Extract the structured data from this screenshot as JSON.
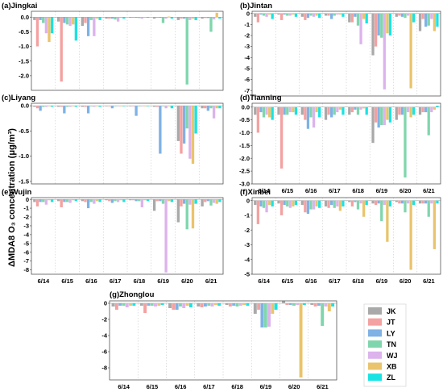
{
  "chart_data": {
    "type": "bar",
    "ylabel": "ΔMDA8 O₃ concentration (μg/m³)",
    "categories": [
      "6/14",
      "6/15",
      "6/16",
      "6/17",
      "6/18",
      "6/19",
      "6/20",
      "6/21"
    ],
    "legend": {
      "placement": "bottom-right",
      "entries": [
        {
          "key": "JK",
          "label": "JK",
          "color": "#a9a9a9"
        },
        {
          "key": "JT",
          "label": "JT",
          "color": "#f4a1a1"
        },
        {
          "key": "LY",
          "label": "LY",
          "color": "#7fb2e5"
        },
        {
          "key": "TN",
          "label": "TN",
          "color": "#7fd6ad"
        },
        {
          "key": "WJ",
          "label": "WJ",
          "color": "#dcb3ec"
        },
        {
          "key": "XB",
          "label": "XB",
          "color": "#eac46c"
        },
        {
          "key": "ZL",
          "label": "ZL",
          "color": "#19e3e3"
        }
      ]
    },
    "panels": [
      {
        "title": "(a)Jingkai",
        "ylim": [
          -2.5,
          0.2
        ],
        "yticks": [
          "0.0",
          "-0.5",
          "-1.0",
          "-1.5",
          "-2.0"
        ],
        "ytick_values": [
          0,
          -0.5,
          -1,
          -1.5,
          -2
        ],
        "show_xticks": false,
        "series": {
          "JK": [
            -0.1,
            -0.15,
            -0.3,
            -0.05,
            -0.02,
            -0.05,
            -0.1,
            -0.05
          ],
          "JT": [
            -1.0,
            -2.2,
            -0.2,
            -0.05,
            -0.02,
            -0.02,
            -0.05,
            -0.03
          ],
          "LY": [
            -0.1,
            -0.2,
            -0.65,
            -0.05,
            -0.02,
            -0.02,
            -0.05,
            -0.03
          ],
          "TN": [
            -0.2,
            -0.25,
            -0.1,
            -0.08,
            -0.03,
            -0.2,
            -2.3,
            -0.5
          ],
          "WJ": [
            -0.55,
            -0.3,
            -0.65,
            -0.15,
            -0.05,
            -0.05,
            -0.1,
            -0.08
          ],
          "XB": [
            -0.85,
            -0.25,
            -0.05,
            -0.02,
            -0.01,
            0.02,
            -0.05,
            0.15
          ],
          "ZL": [
            -0.55,
            -0.8,
            -0.1,
            -0.05,
            -0.02,
            -0.05,
            -0.1,
            -0.05
          ]
        }
      },
      {
        "title": "(b)Jintan",
        "ylim": [
          -7.5,
          0.2
        ],
        "yticks": [
          "0",
          "-1",
          "-2",
          "-3",
          "-4",
          "-5",
          "-6",
          "-7"
        ],
        "ytick_values": [
          0,
          -1,
          -2,
          -3,
          -4,
          -5,
          -6,
          -7
        ],
        "show_xticks": false,
        "series": {
          "JK": [
            -0.3,
            -0.1,
            -0.3,
            -0.2,
            -0.8,
            -3.8,
            -0.3,
            -1.6
          ],
          "JT": [
            -0.8,
            -0.6,
            -0.6,
            -0.2,
            -0.8,
            -3.0,
            -0.2,
            -0.5
          ],
          "LY": [
            -0.1,
            -0.1,
            -0.4,
            -0.5,
            -0.3,
            -2.0,
            -0.3,
            -1.2
          ],
          "TN": [
            -0.2,
            -0.2,
            -0.2,
            -0.2,
            -1.1,
            -2.2,
            -0.4,
            -1.1
          ],
          "WJ": [
            -0.3,
            -0.2,
            -0.3,
            -0.1,
            -2.8,
            -6.9,
            -0.2,
            -0.5
          ],
          "XB": [
            -0.1,
            -0.1,
            -0.2,
            -0.1,
            -0.5,
            -1.8,
            -6.8,
            -1.6
          ],
          "ZL": [
            -0.5,
            -0.3,
            -0.4,
            -0.3,
            -0.9,
            -2.0,
            -0.8,
            -1.2
          ]
        }
      },
      {
        "title": "(c)Liyang",
        "ylim": [
          -1.55,
          0.05
        ],
        "yticks": [
          "0.0",
          "-0.5",
          "-1.0",
          "-1.5"
        ],
        "ytick_values": [
          0,
          -0.5,
          -1,
          -1.5
        ],
        "show_xticks": false,
        "series": {
          "JK": [
            -0.02,
            -0.02,
            -0.02,
            -0.01,
            -0.01,
            -0.02,
            -0.7,
            -0.05
          ],
          "JT": [
            -0.05,
            -0.02,
            -0.02,
            -0.01,
            -0.01,
            -0.02,
            -0.95,
            -0.05
          ],
          "LY": [
            -0.1,
            -0.15,
            -0.15,
            -0.05,
            -0.2,
            -0.95,
            -0.75,
            -0.1
          ],
          "TN": [
            -0.02,
            -0.02,
            -0.01,
            -0.01,
            -0.01,
            -0.01,
            -0.45,
            -0.05
          ],
          "WJ": [
            -0.02,
            -0.02,
            -0.02,
            -0.01,
            -0.01,
            -0.05,
            -1.05,
            -0.25
          ],
          "XB": [
            -0.01,
            -0.01,
            -0.01,
            -0.01,
            -0.01,
            -0.01,
            -1.15,
            -0.05
          ],
          "ZL": [
            -0.02,
            -0.02,
            -0.02,
            -0.01,
            -0.01,
            -0.05,
            -0.55,
            -0.05
          ]
        }
      },
      {
        "title": "(d)Tianning",
        "ylim": [
          -3.0,
          0.15
        ],
        "yticks": [
          "0.0",
          "-0.5",
          "-1.0",
          "-1.5",
          "-2.0",
          "-2.5",
          "-3.0"
        ],
        "ytick_values": [
          0,
          -0.5,
          -1,
          -1.5,
          -2,
          -2.5,
          -3
        ],
        "show_xticks": true,
        "series": {
          "JK": [
            -0.3,
            -0.3,
            -0.3,
            -0.5,
            -0.3,
            -1.4,
            -0.5,
            -0.3
          ],
          "JT": [
            -1.0,
            -2.4,
            -0.5,
            -0.3,
            -0.2,
            -0.6,
            -0.3,
            -0.2
          ],
          "LY": [
            -0.2,
            -0.3,
            -0.85,
            -0.4,
            -0.1,
            -0.8,
            -0.3,
            -0.2
          ],
          "TN": [
            -0.4,
            -0.3,
            -0.4,
            -0.3,
            -0.3,
            -0.7,
            -2.75,
            -1.1
          ],
          "WJ": [
            -0.3,
            -0.2,
            -0.8,
            -0.2,
            -0.1,
            -0.7,
            -0.2,
            -0.2
          ],
          "XB": [
            -0.4,
            -0.2,
            -0.2,
            -0.1,
            -0.05,
            -0.5,
            -0.4,
            -0.1
          ],
          "ZL": [
            -0.5,
            -0.3,
            -0.4,
            -0.3,
            -0.3,
            -0.6,
            -0.3,
            0.05
          ]
        }
      },
      {
        "title": "(e)Wujin",
        "ylim": [
          -8.5,
          0.2
        ],
        "yticks": [
          "0",
          "-1",
          "-2",
          "-3",
          "-4",
          "-5",
          "-6",
          "-7",
          "-8"
        ],
        "ytick_values": [
          0,
          -1,
          -2,
          -3,
          -4,
          -5,
          -6,
          -7,
          -8
        ],
        "show_xticks": true,
        "series": {
          "JK": [
            -0.3,
            -0.2,
            -0.2,
            -0.1,
            -0.1,
            -1.3,
            -2.6,
            -0.8
          ],
          "JT": [
            -0.8,
            -0.9,
            -0.3,
            -0.2,
            -0.1,
            -0.2,
            -0.8,
            -0.3
          ],
          "LY": [
            -0.3,
            -0.3,
            -1.0,
            -0.4,
            -0.2,
            -0.2,
            -0.5,
            -0.2
          ],
          "TN": [
            -0.3,
            -0.3,
            -0.3,
            -0.2,
            -0.2,
            -0.5,
            -3.4,
            -0.7
          ],
          "WJ": [
            -0.6,
            -0.4,
            -0.5,
            -0.3,
            -0.9,
            -8.3,
            -0.6,
            -0.4
          ],
          "XB": [
            -0.1,
            -0.1,
            -0.2,
            -0.1,
            -0.1,
            -0.2,
            -3.3,
            -0.5
          ],
          "ZL": [
            -0.3,
            -0.2,
            -0.3,
            -0.3,
            -0.2,
            -0.3,
            -0.5,
            -0.3
          ]
        }
      },
      {
        "title": "(f)Xinbei",
        "ylim": [
          -5.0,
          0.2
        ],
        "yticks": [
          "0",
          "-1",
          "-2",
          "-3",
          "-4",
          "-5"
        ],
        "ytick_values": [
          0,
          -1,
          -2,
          -3,
          -4,
          -5
        ],
        "show_xticks": true,
        "series": {
          "JK": [
            -0.3,
            -0.2,
            -0.3,
            -0.4,
            -0.1,
            -0.2,
            -0.1,
            -0.2
          ],
          "JT": [
            -1.6,
            -1.0,
            -0.8,
            -0.5,
            -0.4,
            -0.3,
            -0.2,
            -0.2
          ],
          "LY": [
            -0.4,
            -0.3,
            -0.9,
            -0.3,
            -0.1,
            -0.2,
            -0.2,
            -0.2
          ],
          "TN": [
            -0.5,
            -0.4,
            -0.6,
            -0.5,
            -0.6,
            -1.4,
            -0.8,
            -1.1
          ],
          "WJ": [
            -0.8,
            -0.5,
            -0.6,
            -0.4,
            -0.2,
            -0.3,
            -0.2,
            -0.2
          ],
          "XB": [
            -0.3,
            -0.4,
            -0.4,
            -0.7,
            -1.1,
            -2.8,
            -4.7,
            -3.3
          ],
          "ZL": [
            -0.4,
            -0.3,
            -0.5,
            -0.4,
            -0.3,
            -0.4,
            -0.3,
            -0.2
          ]
        }
      },
      {
        "title": "(g)Zhonglou",
        "ylim": [
          -9.5,
          0.3
        ],
        "yticks": [
          "0",
          "-2",
          "-4",
          "-6",
          "-8"
        ],
        "ytick_values": [
          0,
          -2,
          -4,
          -6,
          -8
        ],
        "show_xticks": true,
        "series": {
          "JK": [
            -0.4,
            -0.3,
            -0.6,
            -0.4,
            -0.2,
            -1.3,
            0.3,
            -0.2
          ],
          "JT": [
            -0.8,
            -1.2,
            -0.8,
            -0.5,
            -0.4,
            -0.8,
            -0.2,
            -0.4
          ],
          "LY": [
            -0.3,
            -0.3,
            -0.8,
            -0.4,
            -0.3,
            -3.0,
            -0.2,
            -0.3
          ],
          "TN": [
            -0.3,
            -0.3,
            -0.4,
            -0.3,
            -0.4,
            -3.0,
            -0.3,
            -2.8
          ],
          "WJ": [
            -0.5,
            -0.4,
            -0.6,
            -0.4,
            -0.3,
            -2.9,
            -0.2,
            -0.4
          ],
          "XB": [
            -0.3,
            -0.3,
            -0.3,
            -0.2,
            -0.2,
            -1.3,
            -9.2,
            -1.0
          ],
          "ZL": [
            -0.3,
            -0.2,
            -0.5,
            -0.3,
            -0.3,
            -0.8,
            -0.2,
            -0.4
          ]
        }
      }
    ]
  }
}
